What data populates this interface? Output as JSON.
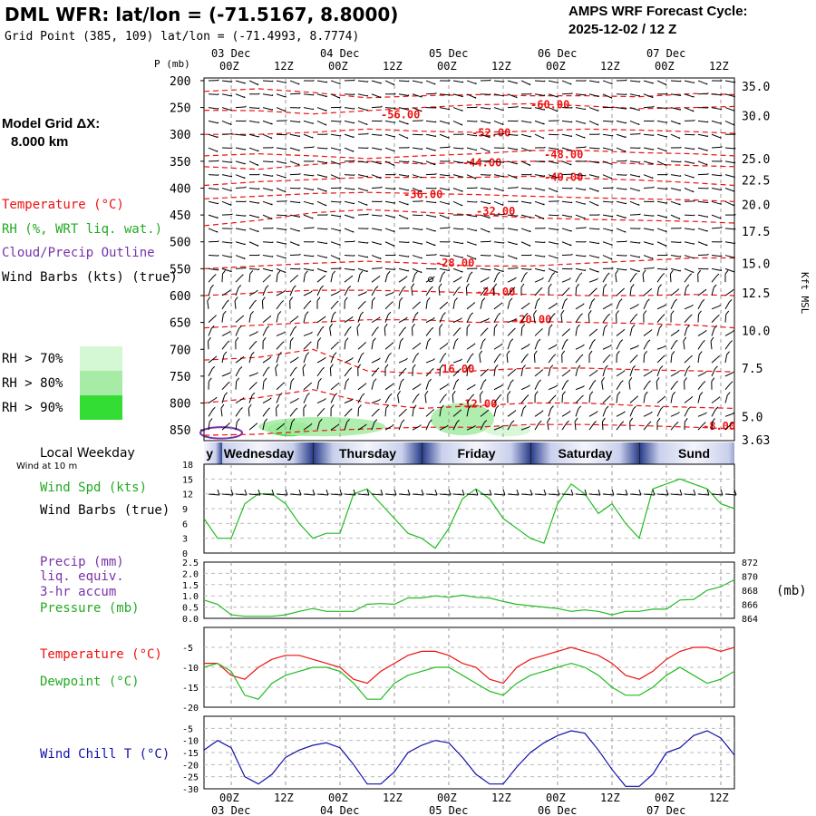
{
  "header": {
    "title": "DML WFR:  lat/lon = (-71.5167, 8.8000)",
    "subtitle": "Grid Point (385, 109) lat/lon = (-71.4993, 8.7774)",
    "cycle_line1": "AMPS WRF Forecast Cycle:",
    "cycle_line2": "2025-12-02 / 12  Z"
  },
  "sidebar": {
    "grid_label": "Model Grid ΔX:",
    "grid_value": "8.000 km",
    "legend_temp": "Temperature (°C)",
    "legend_rh": "RH (%, WRT liq. wat.)",
    "legend_cloud": "Cloud/Precip Outline",
    "legend_wind": "Wind Barbs (kts) (true)",
    "rh_levels": [
      {
        "label": "RH > 70%",
        "color": "#d4f7d4"
      },
      {
        "label": "RH > 80%",
        "color": "#a6eca6"
      },
      {
        "label": "RH > 90%",
        "color": "#33dd33"
      }
    ],
    "local_weekday": "Local Weekday",
    "wind_10m": "Wind at 10 m",
    "panel_wind_spd": "Wind Spd (kts)",
    "panel_wind_barbs": "Wind Barbs (true)",
    "panel_precip1": "Precip (mm)",
    "panel_precip2": "liq. equiv.",
    "panel_precip3": "3-hr accum",
    "panel_pressure": "Pressure (mb)",
    "pressure_unit": "(mb)",
    "panel_temp": "Temperature (°C)",
    "panel_dew": "Dewpoint (°C)",
    "panel_windchill": "Wind Chill T (°C)"
  },
  "colors": {
    "temp": "#ee1111",
    "rh": "#22bb22",
    "cloud": "#7733aa",
    "windchill": "#1111aa",
    "wind": "#000000",
    "grid": "#999999"
  },
  "time_axis": {
    "dates": [
      "03 Dec",
      "04 Dec",
      "05 Dec",
      "06 Dec",
      "07 Dec"
    ],
    "hour_labels": [
      "00Z",
      "12Z",
      "00Z",
      "12Z",
      "00Z",
      "12Z",
      "00Z",
      "12Z",
      "00Z",
      "12Z"
    ],
    "weekdays": [
      "Tuesday",
      "Wednesday",
      "Thursday",
      "Friday",
      "Saturday",
      "Sunday"
    ],
    "weekday_short_first": "y",
    "weekday_short_last": "Sund"
  },
  "chart_data": [
    {
      "type": "line",
      "name_panel": "vertical cross-section",
      "ylabel": "P (mb)",
      "y2label": "Kft MSL",
      "pressure_ticks": [
        200,
        250,
        300,
        350,
        400,
        450,
        500,
        550,
        600,
        650,
        700,
        750,
        800,
        850
      ],
      "kft_ticks": [
        "35.0",
        "30.0",
        "25.0",
        "22.5",
        "20.0",
        "17.5",
        "15.0",
        "12.5",
        "10.0",
        "7.5",
        "5.0",
        "3.63"
      ],
      "kft_pressure": [
        210,
        265,
        345,
        385,
        430,
        480,
        540,
        595,
        665,
        735,
        825,
        868
      ],
      "isotherm_labels": [
        {
          "text": "-60.00",
          "t": 72,
          "p": 245
        },
        {
          "text": "-56.00",
          "t": 39,
          "p": 263
        },
        {
          "text": "-52.00",
          "t": 59,
          "p": 297
        },
        {
          "text": "-48.00",
          "t": 75,
          "p": 338
        },
        {
          "text": "-44.00",
          "t": 57,
          "p": 353
        },
        {
          "text": "-40.00",
          "t": 75,
          "p": 380
        },
        {
          "text": "-36.00",
          "t": 44,
          "p": 412
        },
        {
          "text": "-32.00",
          "t": 60,
          "p": 443
        },
        {
          "text": "-28.00",
          "t": 51,
          "p": 539
        },
        {
          "text": "-24.00",
          "t": 60,
          "p": 593
        },
        {
          "text": "-20.00",
          "t": 68,
          "p": 645
        },
        {
          "text": "-16.00",
          "t": 51,
          "p": 737
        },
        {
          "text": "-12.00",
          "t": 56,
          "p": 802
        },
        {
          "text": "-8.00",
          "t": 110,
          "p": 843
        }
      ],
      "isotherms": [
        {
          "p": [
            220,
            215,
            222,
            232,
            228,
            226,
            228,
            228,
            230,
            224,
            226
          ]
        },
        {
          "p": [
            255,
            256,
            262,
            256,
            250,
            245,
            243,
            247,
            252,
            250,
            248
          ]
        },
        {
          "p": [
            300,
            300,
            296,
            290,
            294,
            296,
            294,
            290,
            292,
            295,
            298
          ]
        },
        {
          "p": [
            340,
            336,
            340,
            345,
            340,
            336,
            330,
            330,
            334,
            336,
            340
          ]
        },
        {
          "p": [
            360,
            365,
            356,
            350,
            355,
            352,
            350,
            350,
            355,
            358,
            360
          ]
        },
        {
          "p": [
            395,
            388,
            384,
            380,
            380,
            380,
            378,
            382,
            385,
            390,
            395
          ]
        },
        {
          "p": [
            420,
            415,
            410,
            408,
            410,
            412,
            415,
            418,
            420,
            422,
            425
          ]
        },
        {
          "p": [
            470,
            460,
            446,
            440,
            445,
            450,
            455,
            458,
            460,
            462,
            465
          ]
        },
        {
          "p": [
            550,
            545,
            540,
            536,
            540,
            545,
            545,
            540,
            535,
            530,
            530
          ]
        },
        {
          "p": [
            600,
            595,
            590,
            590,
            592,
            595,
            598,
            600,
            600,
            598,
            600
          ]
        },
        {
          "p": [
            660,
            655,
            650,
            645,
            645,
            650,
            648,
            650,
            652,
            655,
            660
          ]
        },
        {
          "p": [
            720,
            715,
            700,
            740,
            745,
            740,
            735,
            735,
            738,
            740,
            742
          ]
        },
        {
          "p": [
            800,
            790,
            775,
            800,
            810,
            805,
            800,
            800,
            805,
            808,
            810
          ]
        },
        {
          "p": [
            860,
            858,
            852,
            848,
            845,
            845,
            840,
            840,
            842,
            845,
            848
          ]
        }
      ],
      "rh_areas": [
        {
          "level": 90,
          "t": [
            14,
            24
          ],
          "p": [
            835,
            862
          ]
        },
        {
          "level": 80,
          "t": [
            50,
            64
          ],
          "p": [
            800,
            860
          ]
        },
        {
          "level": 80,
          "t": [
            12,
            40
          ],
          "p": [
            826,
            862
          ]
        },
        {
          "level": 70,
          "t": [
            62,
            72
          ],
          "p": [
            840,
            862
          ]
        }
      ],
      "cloud_outline": {
        "t": [
          0,
          6
        ],
        "p": [
          845,
          866
        ]
      }
    },
    {
      "type": "line",
      "name_panel": "wind speed",
      "ylim": [
        0,
        18
      ],
      "yticks": [
        0,
        3,
        6,
        9,
        12,
        15,
        18
      ],
      "x": [
        0,
        3,
        6,
        9,
        12,
        15,
        18,
        21,
        24,
        27,
        30,
        33,
        36,
        39,
        42,
        45,
        48,
        51,
        54,
        57,
        60,
        63,
        66,
        69,
        72,
        75,
        78,
        81,
        84,
        87,
        90,
        93,
        96,
        99,
        102,
        105,
        108,
        111,
        114,
        117
      ],
      "series": [
        {
          "values": [
            7,
            3,
            3,
            10,
            12,
            12,
            10,
            6,
            3,
            4,
            4,
            12,
            13,
            10,
            7,
            4,
            3,
            1,
            5,
            11,
            13,
            11,
            7,
            5,
            3,
            2,
            10,
            14,
            12,
            8,
            10,
            6,
            3,
            13,
            14,
            15,
            14,
            13,
            10,
            9
          ]
        }
      ]
    },
    {
      "type": "line",
      "name_panel": "precip and pressure",
      "ylim": [
        0,
        2.5
      ],
      "yticks": [
        "0.0",
        "0.5",
        "1.0",
        "1.5",
        "2.0",
        "2.5"
      ],
      "y2ticks": [
        864,
        866,
        868,
        870,
        872
      ],
      "y2lim": [
        864,
        872
      ],
      "x": [
        0,
        3,
        6,
        9,
        12,
        15,
        18,
        21,
        24,
        27,
        30,
        33,
        36,
        39,
        42,
        45,
        48,
        51,
        54,
        57,
        60,
        63,
        66,
        69,
        72,
        75,
        78,
        81,
        84,
        87,
        90,
        93,
        96,
        99,
        102,
        105,
        108,
        111,
        114,
        117
      ],
      "series": [
        {
          "name": "pressure",
          "values": [
            866.6,
            866.0,
            864.5,
            864.3,
            864.3,
            864.3,
            864.5,
            865.0,
            865.4,
            865.0,
            865.0,
            865.0,
            866.0,
            866.1,
            866.0,
            866.9,
            866.9,
            867.2,
            867.0,
            867.3,
            867.0,
            866.9,
            866.4,
            866.0,
            865.8,
            865.6,
            865.4,
            865.0,
            865.2,
            865.0,
            864.5,
            865.0,
            865.0,
            865.3,
            865.3,
            866.6,
            866.7,
            868.0,
            868.5,
            869.5
          ]
        }
      ]
    },
    {
      "type": "line",
      "name_panel": "temperature and dewpoint",
      "ylim": [
        -20,
        0
      ],
      "yticks": [
        -20,
        -15,
        -10,
        -5
      ],
      "x": [
        0,
        3,
        6,
        9,
        12,
        15,
        18,
        21,
        24,
        27,
        30,
        33,
        36,
        39,
        42,
        45,
        48,
        51,
        54,
        57,
        60,
        63,
        66,
        69,
        72,
        75,
        78,
        81,
        84,
        87,
        90,
        93,
        96,
        99,
        102,
        105,
        108,
        111,
        114,
        117
      ],
      "series": [
        {
          "name": "temperature",
          "values": [
            -9,
            -9,
            -12,
            -13,
            -10,
            -8,
            -7,
            -7,
            -8,
            -9,
            -10,
            -13,
            -14,
            -11,
            -9,
            -7,
            -6,
            -6,
            -7,
            -9,
            -10,
            -13,
            -14,
            -10,
            -8,
            -7,
            -6,
            -5,
            -6,
            -7,
            -9,
            -12,
            -13,
            -11,
            -8,
            -6,
            -5,
            -5,
            -6,
            -5
          ]
        },
        {
          "name": "dewpoint",
          "values": [
            -10,
            -9,
            -11,
            -17,
            -18,
            -14,
            -12,
            -11,
            -10,
            -10,
            -11,
            -14,
            -18,
            -18,
            -14,
            -12,
            -11,
            -10,
            -10,
            -12,
            -14,
            -16,
            -17,
            -14,
            -12,
            -11,
            -10,
            -9,
            -10,
            -12,
            -15,
            -17,
            -17,
            -15,
            -12,
            -10,
            -12,
            -14,
            -13,
            -11
          ]
        }
      ]
    },
    {
      "type": "line",
      "name_panel": "wind chill",
      "ylim": [
        -30,
        0
      ],
      "yticks": [
        -30,
        -25,
        -20,
        -15,
        -10,
        -5
      ],
      "x": [
        0,
        3,
        6,
        9,
        12,
        15,
        18,
        21,
        24,
        27,
        30,
        33,
        36,
        39,
        42,
        45,
        48,
        51,
        54,
        57,
        60,
        63,
        66,
        69,
        72,
        75,
        78,
        81,
        84,
        87,
        90,
        93,
        96,
        99,
        102,
        105,
        108,
        111,
        114,
        117
      ],
      "series": [
        {
          "name": "wind chill",
          "values": [
            -14,
            -10,
            -13,
            -25,
            -28,
            -24,
            -17,
            -14,
            -12,
            -11,
            -13,
            -20,
            -28,
            -28,
            -23,
            -15,
            -12,
            -10,
            -11,
            -17,
            -24,
            -28,
            -28,
            -21,
            -15,
            -11,
            -8,
            -6,
            -7,
            -14,
            -22,
            -29,
            -29,
            -24,
            -15,
            -13,
            -8,
            -6,
            -9,
            -16
          ]
        }
      ]
    }
  ]
}
